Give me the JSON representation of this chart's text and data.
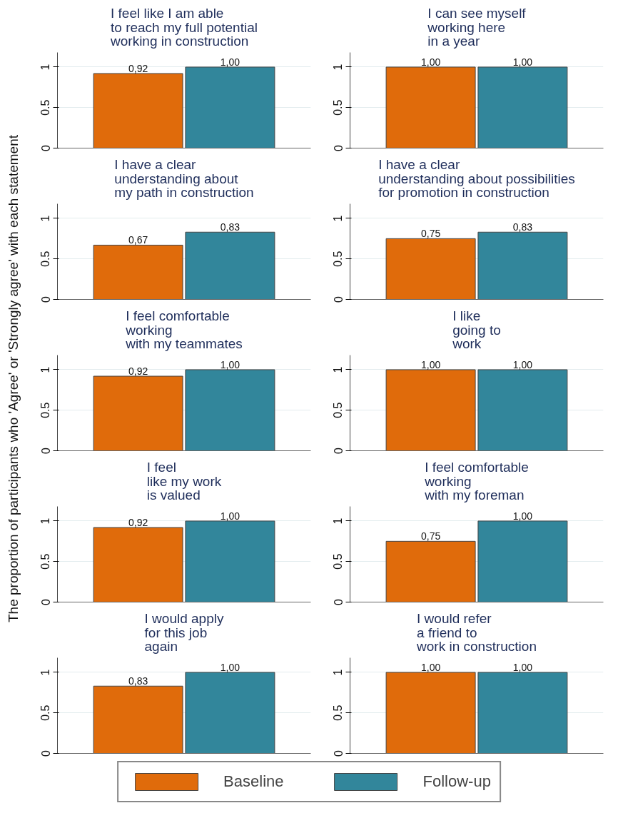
{
  "chart_data": [
    {
      "type": "bar",
      "title": "I feel like I am able\nto reach my full potential\nworking in construction",
      "ylabel": "The proportion of participants who 'Agree' or 'Strongly agree' with each statement",
      "categories": [
        null
      ],
      "ylim": [
        0,
        1.18
      ],
      "yticks": [
        0,
        0.5,
        1
      ],
      "grid": "y",
      "series": [
        {
          "color": "#e06b0b",
          "values": [
            0.92
          ],
          "value_labels": [
            "0,92"
          ]
        },
        {
          "color": "#32869b",
          "values": [
            1.0
          ],
          "value_labels": [
            "1,00"
          ]
        }
      ]
    },
    {
      "type": "bar",
      "title": "I can see myself\nworking here\nin a year",
      "categories": [
        null
      ],
      "ylim": [
        0,
        1.18
      ],
      "yticks": [
        0,
        0.5,
        1
      ],
      "grid": "y",
      "series": [
        {
          "color": "#e06b0b",
          "values": [
            1.0
          ],
          "value_labels": [
            "1,00"
          ]
        },
        {
          "color": "#32869b",
          "values": [
            1.0
          ],
          "value_labels": [
            "1,00"
          ]
        }
      ]
    },
    {
      "type": "bar",
      "title": "I have a clear\nunderstanding about\nmy path in construction",
      "categories": [
        null
      ],
      "ylim": [
        0,
        1.18
      ],
      "yticks": [
        0,
        0.5,
        1
      ],
      "grid": "y",
      "series": [
        {
          "color": "#e06b0b",
          "values": [
            0.67
          ],
          "value_labels": [
            "0,67"
          ]
        },
        {
          "color": "#32869b",
          "values": [
            0.83
          ],
          "value_labels": [
            "0,83"
          ]
        }
      ]
    },
    {
      "type": "bar",
      "title": "I have a clear\nunderstanding about possibilities\nfor promotion in construction",
      "categories": [
        null
      ],
      "ylim": [
        0,
        1.18
      ],
      "yticks": [
        0,
        0.5,
        1
      ],
      "grid": "y",
      "series": [
        {
          "color": "#e06b0b",
          "values": [
            0.75
          ],
          "value_labels": [
            "0,75"
          ]
        },
        {
          "color": "#32869b",
          "values": [
            0.83
          ],
          "value_labels": [
            "0,83"
          ]
        }
      ]
    },
    {
      "type": "bar",
      "title": "I feel comfortable\nworking\nwith my teammates",
      "categories": [
        null
      ],
      "ylim": [
        0,
        1.18
      ],
      "yticks": [
        0,
        0.5,
        1
      ],
      "grid": "y",
      "series": [
        {
          "color": "#e06b0b",
          "values": [
            0.92
          ],
          "value_labels": [
            "0,92"
          ]
        },
        {
          "color": "#32869b",
          "values": [
            1.0
          ],
          "value_labels": [
            "1,00"
          ]
        }
      ]
    },
    {
      "type": "bar",
      "title": "I like\ngoing to\nwork",
      "categories": [
        null
      ],
      "ylim": [
        0,
        1.18
      ],
      "yticks": [
        0,
        0.5,
        1
      ],
      "grid": "y",
      "series": [
        {
          "color": "#e06b0b",
          "values": [
            1.0
          ],
          "value_labels": [
            "1,00"
          ]
        },
        {
          "color": "#32869b",
          "values": [
            1.0
          ],
          "value_labels": [
            "1,00"
          ]
        }
      ]
    },
    {
      "type": "bar",
      "title": "I feel\nlike my work\nis valued",
      "categories": [
        null
      ],
      "ylim": [
        0,
        1.18
      ],
      "yticks": [
        0,
        0.5,
        1
      ],
      "grid": "y",
      "series": [
        {
          "color": "#e06b0b",
          "values": [
            0.92
          ],
          "value_labels": [
            "0,92"
          ]
        },
        {
          "color": "#32869b",
          "values": [
            1.0
          ],
          "value_labels": [
            "1,00"
          ]
        }
      ]
    },
    {
      "type": "bar",
      "title": "I feel comfortable\nworking\nwith my foreman",
      "categories": [
        null
      ],
      "ylim": [
        0,
        1.18
      ],
      "yticks": [
        0,
        0.5,
        1
      ],
      "grid": "y",
      "series": [
        {
          "color": "#e06b0b",
          "values": [
            0.75
          ],
          "value_labels": [
            "0,75"
          ]
        },
        {
          "color": "#32869b",
          "values": [
            1.0
          ],
          "value_labels": [
            "1,00"
          ]
        }
      ]
    },
    {
      "type": "bar",
      "title": "I would apply\nfor this job\nagain",
      "categories": [
        null
      ],
      "ylim": [
        0,
        1.18
      ],
      "yticks": [
        0,
        0.5,
        1
      ],
      "grid": "y",
      "series": [
        {
          "color": "#e06b0b",
          "values": [
            0.83
          ],
          "value_labels": [
            "0,83"
          ]
        },
        {
          "color": "#32869b",
          "values": [
            1.0
          ],
          "value_labels": [
            "1,00"
          ]
        }
      ]
    },
    {
      "type": "bar",
      "title": "I would refer\na friend to\nwork in construction",
      "categories": [
        null
      ],
      "ylim": [
        0,
        1.18
      ],
      "yticks": [
        0,
        0.5,
        1
      ],
      "grid": "y",
      "legend": "bottom",
      "series": [
        {
          "name": "Baseline",
          "color": "#e06b0b",
          "values": [
            1.0
          ],
          "value_labels": [
            "1,00"
          ]
        },
        {
          "name": "Follow-up",
          "color": "#32869b",
          "values": [
            1.0
          ],
          "value_labels": [
            "1,00"
          ]
        }
      ]
    }
  ]
}
